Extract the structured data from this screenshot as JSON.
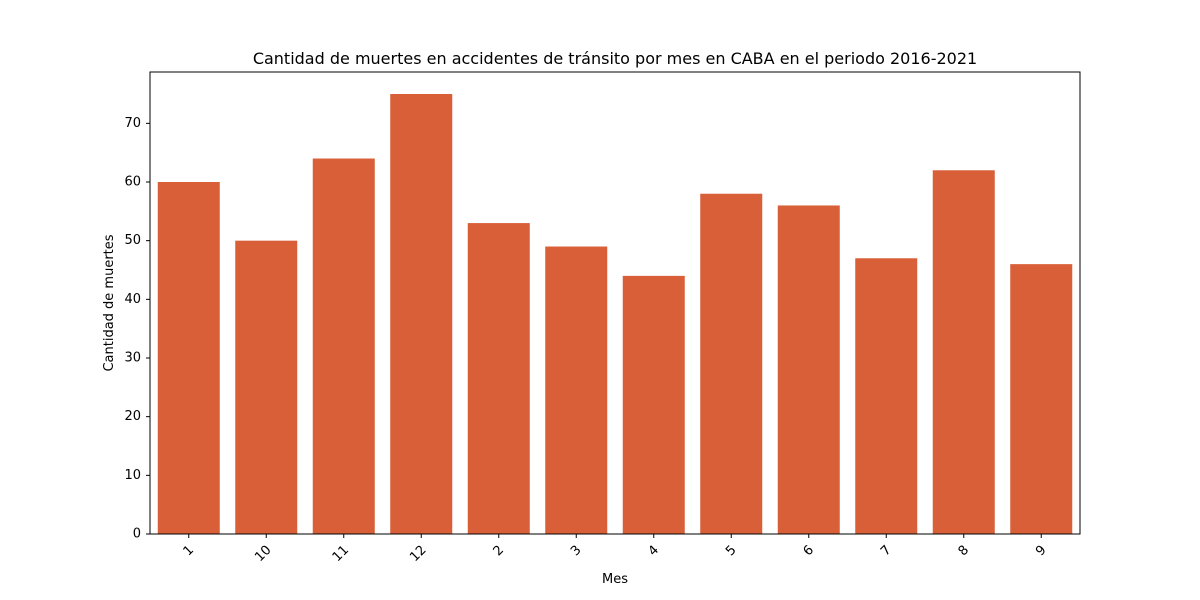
{
  "chart_data": {
    "type": "bar",
    "title": "Cantidad de muertes en accidentes de tránsito por mes en CABA en el periodo 2016-2021",
    "xlabel": "Mes",
    "ylabel": "Cantidad de muertes",
    "categories": [
      "1",
      "10",
      "11",
      "12",
      "2",
      "3",
      "4",
      "5",
      "6",
      "7",
      "8",
      "9"
    ],
    "values": [
      60,
      50,
      64,
      75,
      53,
      49,
      44,
      58,
      56,
      47,
      62,
      46
    ],
    "ylim": [
      0,
      78.75
    ],
    "yticks": [
      0,
      10,
      20,
      30,
      40,
      50,
      60,
      70
    ],
    "grid": false,
    "legend": "none",
    "bar_color": "#d95f38"
  }
}
